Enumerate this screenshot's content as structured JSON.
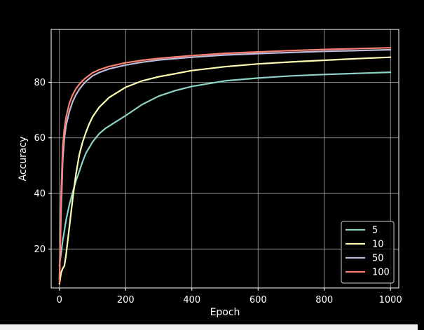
{
  "chart_data": {
    "type": "line",
    "title": "",
    "xlabel": "Epoch",
    "ylabel": "Accuracy",
    "xlim": [
      -25,
      1025
    ],
    "ylim": [
      6,
      99
    ],
    "xticks": [
      0,
      200,
      400,
      600,
      800,
      1000
    ],
    "yticks": [
      20,
      40,
      60,
      80
    ],
    "grid": true,
    "legend_position": "lower-right",
    "background": "#000000",
    "series": [
      {
        "name": "5",
        "color": "#8dd3c7",
        "x": [
          0,
          10,
          20,
          30,
          40,
          50,
          60,
          70,
          80,
          90,
          100,
          120,
          140,
          160,
          200,
          250,
          300,
          350,
          400,
          500,
          600,
          700,
          800,
          900,
          1000
        ],
        "y": [
          14,
          23,
          30.5,
          36,
          40.5,
          44.5,
          48,
          51.5,
          54.5,
          56.5,
          58.5,
          61.5,
          63.5,
          65,
          68,
          72,
          75,
          77,
          78.5,
          80.5,
          81.5,
          82.3,
          82.8,
          83.2,
          83.6
        ]
      },
      {
        "name": "10",
        "color": "#ffffb3",
        "x": [
          0,
          5,
          10,
          15,
          20,
          30,
          40,
          50,
          60,
          70,
          80,
          90,
          100,
          120,
          150,
          200,
          250,
          300,
          400,
          500,
          600,
          700,
          800,
          900,
          1000
        ],
        "y": [
          7.5,
          11.5,
          13,
          14,
          18,
          28,
          38,
          47,
          54,
          58.5,
          62,
          65,
          67.5,
          71,
          74.5,
          78.2,
          80.5,
          82,
          84.2,
          85.6,
          86.6,
          87.3,
          87.9,
          88.5,
          89.0
        ]
      },
      {
        "name": "50",
        "color": "#bebada",
        "x": [
          0,
          5,
          10,
          15,
          20,
          30,
          40,
          50,
          60,
          70,
          80,
          100,
          120,
          150,
          200,
          250,
          300,
          400,
          500,
          600,
          700,
          800,
          900,
          1000
        ],
        "y": [
          9,
          34,
          52,
          60,
          64.5,
          69.5,
          73,
          75.5,
          77.5,
          79,
          80.3,
          82.3,
          83.5,
          84.8,
          86.2,
          87.2,
          88,
          89,
          89.8,
          90.3,
          90.7,
          91.1,
          91.4,
          91.7
        ]
      },
      {
        "name": "100",
        "color": "#fb8072",
        "x": [
          0,
          5,
          10,
          15,
          20,
          30,
          40,
          50,
          60,
          70,
          80,
          100,
          120,
          150,
          200,
          250,
          300,
          400,
          500,
          600,
          700,
          800,
          900,
          1000
        ],
        "y": [
          8,
          40,
          57,
          63.5,
          67.5,
          72.5,
          75.5,
          77.7,
          79.3,
          80.6,
          81.6,
          83.4,
          84.5,
          85.7,
          87,
          87.9,
          88.6,
          89.6,
          90.4,
          90.9,
          91.4,
          91.8,
          92.1,
          92.4
        ]
      }
    ]
  }
}
